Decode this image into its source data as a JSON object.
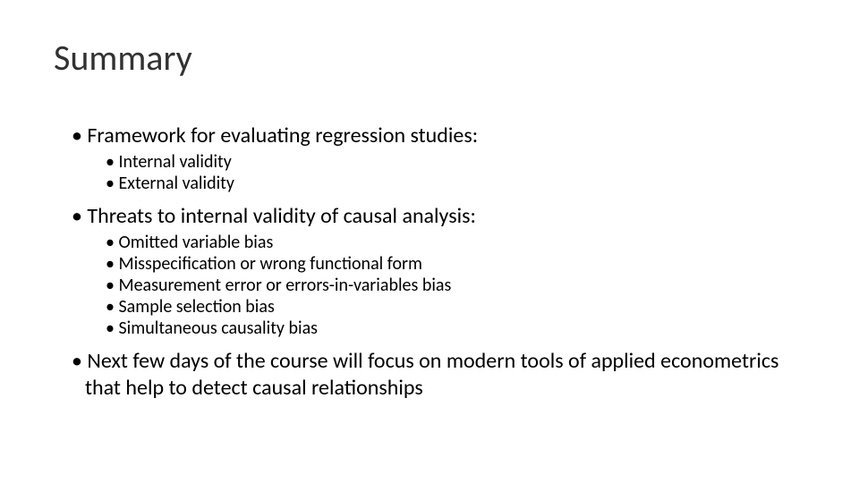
{
  "slide": {
    "title": "Summary",
    "title_fontsize": 40,
    "title_color": "#323232",
    "body_color": "#000000",
    "background_color": "#ffffff",
    "bullet_l1_fontsize": 24,
    "bullet_l2_fontsize": 20,
    "font_family": "Calibri",
    "items": [
      {
        "text": "Framework for evaluating regression studies:",
        "sub": [
          "Internal validity",
          "External validity"
        ]
      },
      {
        "text": "Threats to internal validity of causal analysis:",
        "sub": [
          "Omitted variable bias",
          "Misspecification or wrong functional form",
          "Measurement error or errors-in-variables bias",
          "Sample selection bias",
          "Simultaneous causality bias"
        ]
      },
      {
        "text": "Next few days of the course will focus on modern tools of applied econometrics that help to detect causal relationships",
        "sub": []
      }
    ]
  }
}
